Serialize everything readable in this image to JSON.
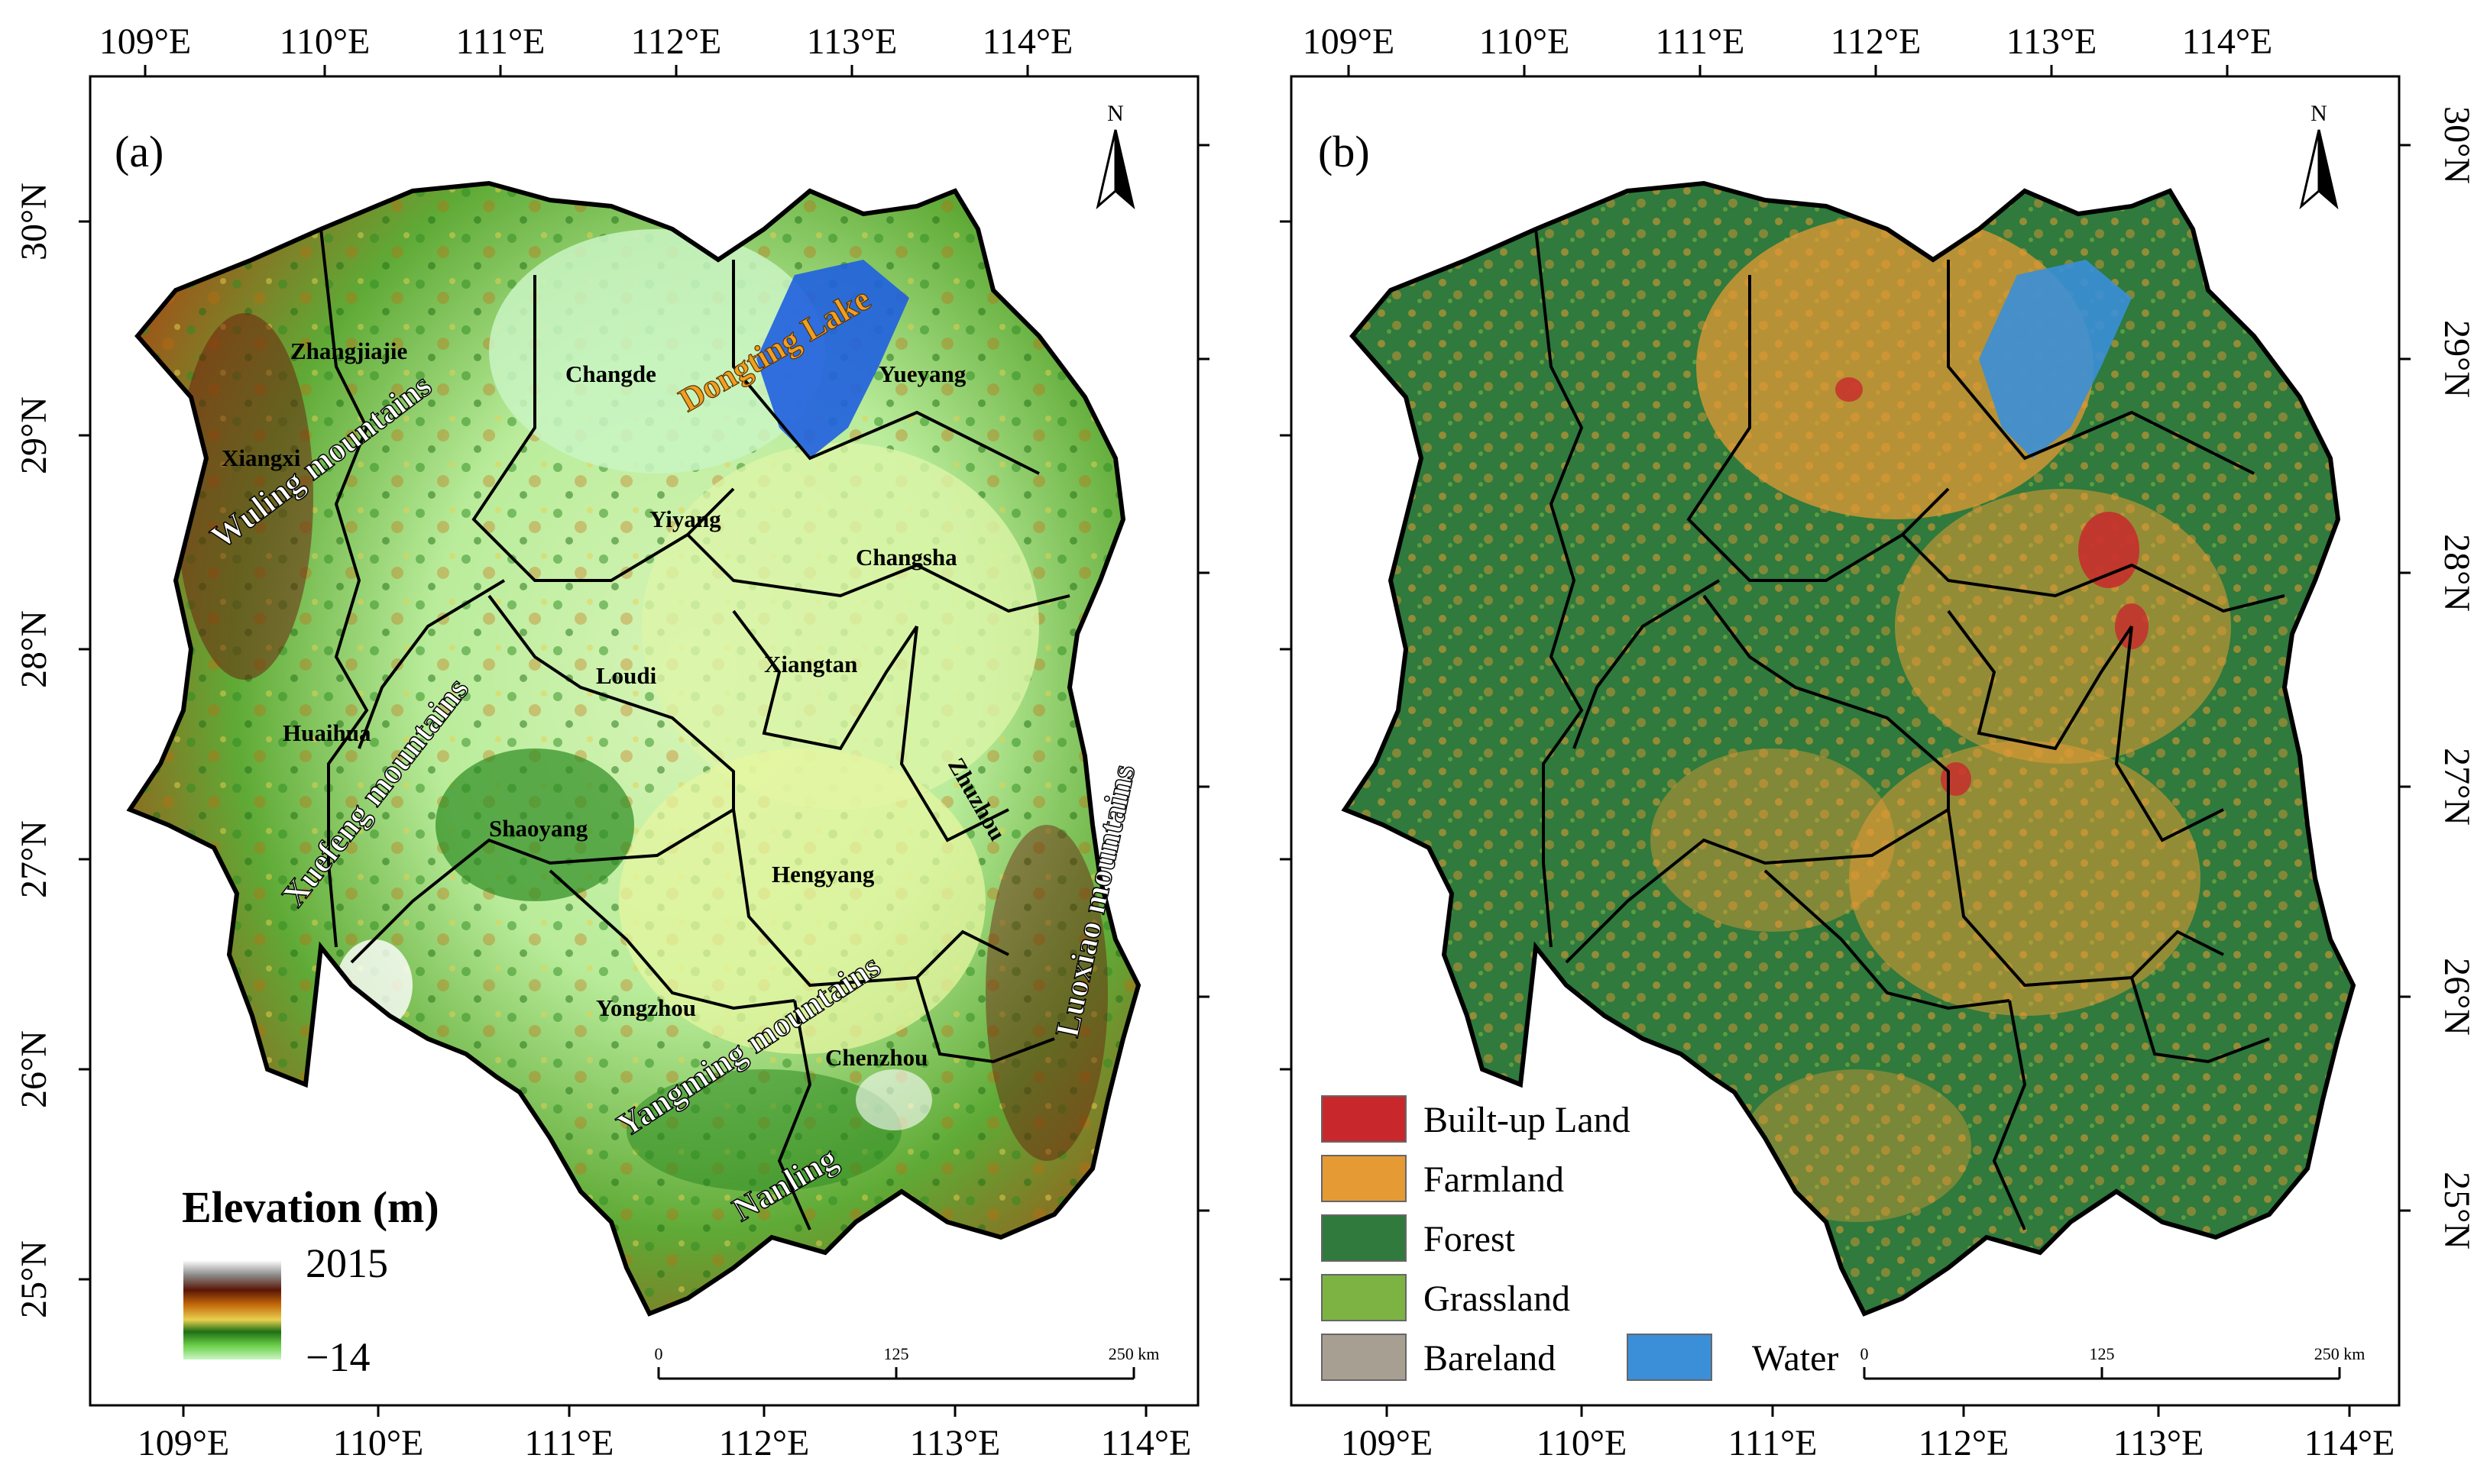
{
  "panel_a": {
    "label": "(a)",
    "top_ticks": [
      "109°E",
      "110°E",
      "111°E",
      "112°E",
      "113°E",
      "114°E"
    ],
    "bottom_ticks": [
      "109°E",
      "110°E",
      "111°E",
      "112°E",
      "113°E",
      "114°E"
    ],
    "left_ticks": [
      "30°N",
      "29°N",
      "28°N",
      "27°N",
      "26°N",
      "25°N"
    ],
    "north": "N",
    "cities": [
      "Zhangjiajie",
      "Changde",
      "Yueyang",
      "Xiangxi",
      "Yiyang",
      "Changsha",
      "Loudi",
      "Xiangtan",
      "Huaihua",
      "Zhuzhou",
      "Shaoyang",
      "Hengyang",
      "Yongzhou",
      "Chenzhou"
    ],
    "mountains": [
      "Wuling mountains",
      "Xuefeng mountains",
      "Yangming mountains",
      "Luoxiao mountains",
      "Nanling"
    ],
    "lake": "Dongting Lake",
    "legend_title": "Elevation (m)",
    "legend_max": "2015",
    "legend_min": "−14",
    "scale": [
      "0",
      "125",
      "250 km"
    ],
    "colors": {
      "low": "#c9f5c3",
      "mid_green": "#2e8b22",
      "brown": "#6b1a0a",
      "orange": "#c46a0a",
      "high": "#ffffff",
      "water": "#1f5fe0",
      "lake_label": "#f0a020"
    }
  },
  "panel_b": {
    "label": "(b)",
    "top_ticks": [
      "109°E",
      "110°E",
      "111°E",
      "112°E",
      "113°E",
      "114°E"
    ],
    "bottom_ticks": [
      "109°E",
      "110°E",
      "111°E",
      "112°E",
      "113°E",
      "114°E"
    ],
    "right_ticks": [
      "30°N",
      "29°N",
      "28°N",
      "27°N",
      "26°N",
      "25°N"
    ],
    "north": "N",
    "legend": [
      {
        "label": "Built-up Land",
        "color": "#c8282c"
      },
      {
        "label": "Farmland",
        "color": "#e69a33"
      },
      {
        "label": "Forest",
        "color": "#2f7a3c"
      },
      {
        "label": "Grassland",
        "color": "#7cb342"
      },
      {
        "label": "Bareland",
        "color": "#a89f93"
      },
      {
        "label": "Water",
        "color": "#3a8fd8"
      }
    ],
    "scale": [
      "0",
      "125",
      "250 km"
    ]
  }
}
